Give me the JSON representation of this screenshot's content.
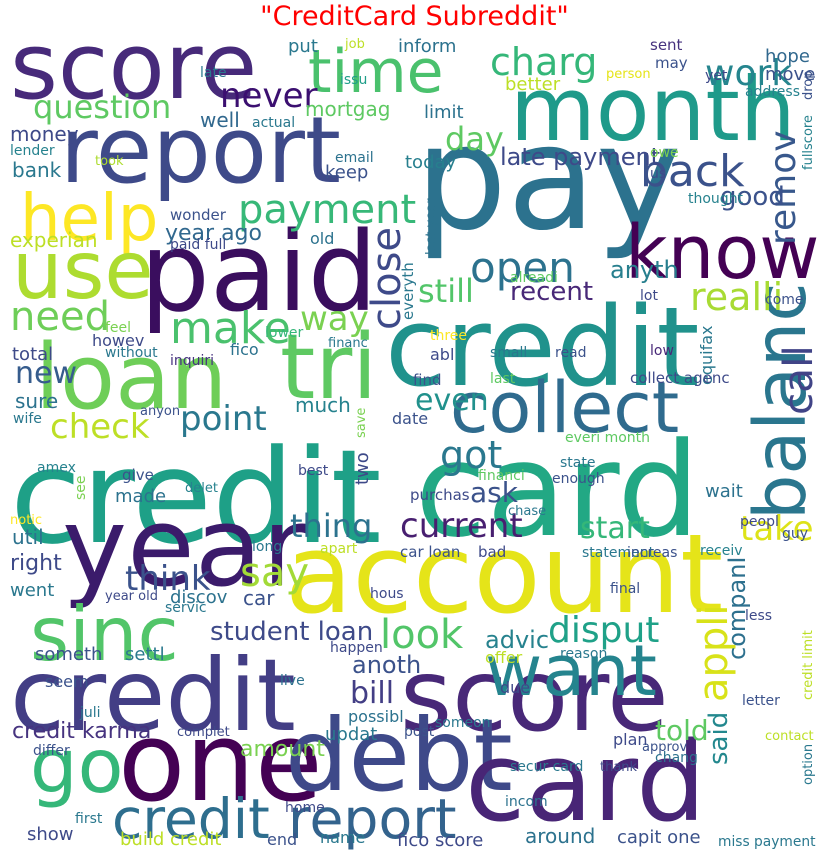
{
  "title": "\"CreditCard Subreddit\"",
  "words": [
    {
      "text": "score",
      "color": "#472a7a"
    },
    {
      "text": "report",
      "color": "#3e4a89"
    },
    {
      "text": "time",
      "color": "#4ac16d"
    },
    {
      "text": "month",
      "color": "#1f9a8a"
    },
    {
      "text": "pay",
      "color": "#2c728e"
    },
    {
      "text": "charg",
      "color": "#35b779"
    },
    {
      "text": "work",
      "color": "#25858e"
    },
    {
      "text": "question",
      "color": "#5ec962"
    },
    {
      "text": "help",
      "color": "#fde725"
    },
    {
      "text": "know",
      "color": "#440154"
    },
    {
      "text": "back",
      "color": "#3b528b"
    },
    {
      "text": "paid",
      "color": "#3a0e5e"
    },
    {
      "text": "use",
      "color": "#addc30"
    },
    {
      "text": "payment",
      "color": "#37b878"
    },
    {
      "text": "credit",
      "color": "#20928c"
    },
    {
      "text": "loan",
      "color": "#6ece58"
    },
    {
      "text": "tri",
      "color": "#5ec962"
    },
    {
      "text": "collect",
      "color": "#2f6b8e"
    },
    {
      "text": "credit",
      "color": "#1ea087"
    },
    {
      "text": "card",
      "color": "#22a884"
    },
    {
      "text": "year",
      "color": "#3b1b6b"
    },
    {
      "text": "account",
      "color": "#e5e419"
    },
    {
      "text": "sinc",
      "color": "#52c569"
    },
    {
      "text": "balanc",
      "color": "#2a768e"
    },
    {
      "text": "credit",
      "color": "#433e85"
    },
    {
      "text": "score",
      "color": "#482878"
    },
    {
      "text": "go",
      "color": "#35b779"
    },
    {
      "text": "one",
      "color": "#440154"
    },
    {
      "text": "debt",
      "color": "#3e4989"
    },
    {
      "text": "card",
      "color": "#482576"
    },
    {
      "text": "want",
      "color": "#25848e"
    },
    {
      "text": "credit",
      "color": "#2e6e8e"
    },
    {
      "text": "report",
      "color": "#33638d"
    },
    {
      "text": "open",
      "color": "#2c728e"
    },
    {
      "text": "close",
      "color": "#3e4a89"
    },
    {
      "text": "realli",
      "color": "#a8db34"
    },
    {
      "text": "still",
      "color": "#52c569"
    },
    {
      "text": "call",
      "color": "#414487"
    },
    {
      "text": "make",
      "color": "#4ac16d"
    },
    {
      "text": "need",
      "color": "#6ece58"
    },
    {
      "text": "way",
      "color": "#7ad151"
    },
    {
      "text": "got",
      "color": "#2a788e"
    },
    {
      "text": "remov",
      "color": "#38588c"
    },
    {
      "text": "day",
      "color": "#5ec962"
    },
    {
      "text": "never",
      "color": "#3b0f70"
    },
    {
      "text": "late payment",
      "color": "#3e4a89"
    },
    {
      "text": "good",
      "color": "#3b528b"
    },
    {
      "text": "recent",
      "color": "#482878"
    },
    {
      "text": "anyth",
      "color": "#277f8e"
    },
    {
      "text": "year ago",
      "color": "#31688e"
    },
    {
      "text": "point",
      "color": "#2a788e"
    },
    {
      "text": "check",
      "color": "#bddf26"
    },
    {
      "text": "new",
      "color": "#365c8d"
    },
    {
      "text": "even",
      "color": "#21918c"
    },
    {
      "text": "ask",
      "color": "#3b528b"
    },
    {
      "text": "thing",
      "color": "#2c728e"
    },
    {
      "text": "current",
      "color": "#481f70"
    },
    {
      "text": "start",
      "color": "#35b779"
    },
    {
      "text": "take",
      "color": "#dde318"
    },
    {
      "text": "say",
      "color": "#a2da37"
    },
    {
      "text": "think",
      "color": "#3b528b"
    },
    {
      "text": "look",
      "color": "#52c569"
    },
    {
      "text": "disput",
      "color": "#1fa188"
    },
    {
      "text": "appli",
      "color": "#d8e219"
    },
    {
      "text": "companI",
      "color": "#2d708e"
    },
    {
      "text": "student loan",
      "color": "#3e4a89"
    },
    {
      "text": "advic",
      "color": "#26828e"
    },
    {
      "text": "bill",
      "color": "#433e85"
    },
    {
      "text": "anoth",
      "color": "#3b528b"
    },
    {
      "text": "said",
      "color": "#23888e"
    },
    {
      "text": "told",
      "color": "#5ec962"
    },
    {
      "text": "credit karma",
      "color": "#46337f"
    },
    {
      "text": "amount",
      "color": "#7ad151"
    },
    {
      "text": "inform",
      "color": "#2c728e"
    },
    {
      "text": "put",
      "color": "#2a788e"
    },
    {
      "text": "job",
      "color": "#bddf26"
    },
    {
      "text": "sent",
      "color": "#46327e"
    },
    {
      "text": "may",
      "color": "#3b528b"
    },
    {
      "text": "hope",
      "color": "#31688e"
    },
    {
      "text": "late",
      "color": "#2a788e"
    },
    {
      "text": "issu",
      "color": "#1f9e89"
    },
    {
      "text": "person",
      "color": "#e5e419"
    },
    {
      "text": "yet",
      "color": "#3e4989"
    },
    {
      "text": "move",
      "color": "#3b528b"
    },
    {
      "text": "better",
      "color": "#bddf26"
    },
    {
      "text": "address",
      "color": "#26828e"
    },
    {
      "text": "mortgag",
      "color": "#5ec962"
    },
    {
      "text": "limit",
      "color": "#2c728e"
    },
    {
      "text": "well",
      "color": "#31688e"
    },
    {
      "text": "actual",
      "color": "#2a788e"
    },
    {
      "text": "money",
      "color": "#3e4a89"
    },
    {
      "text": "lender",
      "color": "#26828e"
    },
    {
      "text": "bank",
      "color": "#2a788e"
    },
    {
      "text": "took",
      "color": "#addc30"
    },
    {
      "text": "email",
      "color": "#2c728e"
    },
    {
      "text": "keep",
      "color": "#3b528b"
    },
    {
      "text": "today",
      "color": "#277f8e"
    },
    {
      "text": "owe",
      "color": "#7ad151"
    },
    {
      "text": "us",
      "color": "#3e4a89"
    },
    {
      "text": "thought",
      "color": "#26828e"
    },
    {
      "text": "fullscore",
      "color": "#26828e"
    },
    {
      "text": "drop",
      "color": "#3b528b"
    },
    {
      "text": "wonder",
      "color": "#3b528b"
    },
    {
      "text": "experian",
      "color": "#bddf26"
    },
    {
      "text": "paid full",
      "color": "#3e4a89"
    },
    {
      "text": "old",
      "color": "#2c728e"
    },
    {
      "text": "everyth",
      "color": "#2a788e"
    },
    {
      "text": "last year",
      "color": "#2c728e"
    },
    {
      "text": "alreadi",
      "color": "#5ec962"
    },
    {
      "text": "lot",
      "color": "#3e4a89"
    },
    {
      "text": "equifax",
      "color": "#2a788e"
    },
    {
      "text": "come",
      "color": "#3b528b"
    },
    {
      "text": "feel",
      "color": "#7ad151"
    },
    {
      "text": "lower",
      "color": "#35b779"
    },
    {
      "text": "howev",
      "color": "#3e4a89"
    },
    {
      "text": "inquiri",
      "color": "#46337f"
    },
    {
      "text": "fico",
      "color": "#2c728e"
    },
    {
      "text": "financ",
      "color": "#2a788e"
    },
    {
      "text": "three",
      "color": "#fde725"
    },
    {
      "text": "abl",
      "color": "#3e4a89"
    },
    {
      "text": "small",
      "color": "#2a788e"
    },
    {
      "text": "read",
      "color": "#3b528b"
    },
    {
      "text": "low",
      "color": "#482878"
    },
    {
      "text": "total",
      "color": "#3e4a89"
    },
    {
      "text": "without",
      "color": "#2a788e"
    },
    {
      "text": "find",
      "color": "#3b528b"
    },
    {
      "text": "last",
      "color": "#5ec962"
    },
    {
      "text": "collect agenc",
      "color": "#3e4a89"
    },
    {
      "text": "sure",
      "color": "#2c728e"
    },
    {
      "text": "much",
      "color": "#26828e"
    },
    {
      "text": "anyon",
      "color": "#3b528b"
    },
    {
      "text": "wife",
      "color": "#2a788e"
    },
    {
      "text": "two",
      "color": "#3e4a89"
    },
    {
      "text": "save",
      "color": "#7ad151"
    },
    {
      "text": "date",
      "color": "#3b528b"
    },
    {
      "text": "everi month",
      "color": "#5ec962"
    },
    {
      "text": "amex",
      "color": "#26828e"
    },
    {
      "text": "see",
      "color": "#7ad151"
    },
    {
      "text": "give",
      "color": "#3b528b"
    },
    {
      "text": "best",
      "color": "#3e4a89"
    },
    {
      "text": "financi",
      "color": "#5ec962"
    },
    {
      "text": "state",
      "color": "#2a788e"
    },
    {
      "text": "enough",
      "color": "#3b528b"
    },
    {
      "text": "made",
      "color": "#2c728e"
    },
    {
      "text": "delet",
      "color": "#26828e"
    },
    {
      "text": "purchas",
      "color": "#3e4a89"
    },
    {
      "text": "wait",
      "color": "#2c728e"
    },
    {
      "text": "notic",
      "color": "#fde725"
    },
    {
      "text": "chase",
      "color": "#2a788e"
    },
    {
      "text": "peopl",
      "color": "#3e4a89"
    },
    {
      "text": "guy",
      "color": "#3b528b"
    },
    {
      "text": "util",
      "color": "#2c728e"
    },
    {
      "text": "right",
      "color": "#3e4a89"
    },
    {
      "text": "long",
      "color": "#2a788e"
    },
    {
      "text": "apart",
      "color": "#bddf26"
    },
    {
      "text": "car loan",
      "color": "#3b528b"
    },
    {
      "text": "bad",
      "color": "#3e4a89"
    },
    {
      "text": "statement",
      "color": "#2a788e"
    },
    {
      "text": "increas",
      "color": "#3b528b"
    },
    {
      "text": "receiv",
      "color": "#26828e"
    },
    {
      "text": "went",
      "color": "#2a788e"
    },
    {
      "text": "year old",
      "color": "#3e4a89"
    },
    {
      "text": "discov",
      "color": "#2c728e"
    },
    {
      "text": "car",
      "color": "#3b528b"
    },
    {
      "text": "hous",
      "color": "#3e4a89"
    },
    {
      "text": "final",
      "color": "#3b528b"
    },
    {
      "text": "servic",
      "color": "#2a788e"
    },
    {
      "text": "less",
      "color": "#3e4a89"
    },
    {
      "text": "someth",
      "color": "#3b528b"
    },
    {
      "text": "settl",
      "color": "#2a788e"
    },
    {
      "text": "happen",
      "color": "#3e4a89"
    },
    {
      "text": "offer",
      "color": "#bddf26"
    },
    {
      "text": "reason",
      "color": "#2a788e"
    },
    {
      "text": "credit limit",
      "color": "#bddf26"
    },
    {
      "text": "seem",
      "color": "#3b528b"
    },
    {
      "text": "juli",
      "color": "#2a788e"
    },
    {
      "text": "live",
      "color": "#2c728e"
    },
    {
      "text": "due",
      "color": "#3e4a89"
    },
    {
      "text": "letter",
      "color": "#3b528b"
    },
    {
      "text": "complet",
      "color": "#3e4a89"
    },
    {
      "text": "updat",
      "color": "#2a788e"
    },
    {
      "text": "possibl",
      "color": "#2c728e"
    },
    {
      "text": "post",
      "color": "#3b528b"
    },
    {
      "text": "someon",
      "color": "#2a788e"
    },
    {
      "text": "plan",
      "color": "#3e4a89"
    },
    {
      "text": "contact",
      "color": "#bddf26"
    },
    {
      "text": "option",
      "color": "#2a788e"
    },
    {
      "text": "differ",
      "color": "#3b528b"
    },
    {
      "text": "secur card",
      "color": "#2a788e"
    },
    {
      "text": "thank",
      "color": "#3e4a89"
    },
    {
      "text": "chang",
      "color": "#2c728e"
    },
    {
      "text": "approv",
      "color": "#3b528b"
    },
    {
      "text": "first",
      "color": "#2a788e"
    },
    {
      "text": "home",
      "color": "#3e4a89"
    },
    {
      "text": "incom",
      "color": "#2c728e"
    },
    {
      "text": "show",
      "color": "#3e4a89"
    },
    {
      "text": "build credit",
      "color": "#bddf26"
    },
    {
      "text": "end",
      "color": "#3b528b"
    },
    {
      "text": "name",
      "color": "#2a788e"
    },
    {
      "text": "fico score",
      "color": "#3e4a89"
    },
    {
      "text": "around",
      "color": "#2c728e"
    },
    {
      "text": "capit one",
      "color": "#3b528b"
    },
    {
      "text": "miss payment",
      "color": "#2a788e"
    }
  ]
}
